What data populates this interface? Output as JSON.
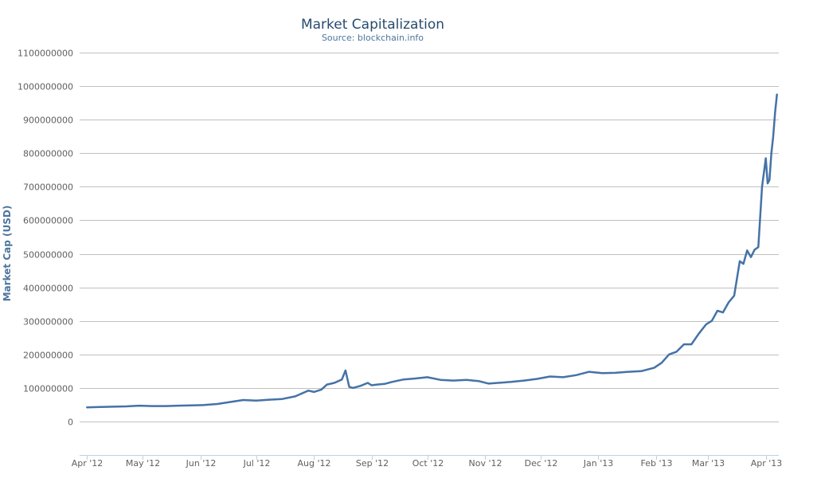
{
  "chart_data": {
    "type": "line",
    "title": "Market Capitalization",
    "subtitle": "Source: blockchain.info",
    "xlabel": "",
    "ylabel": "Market Cap (USD)",
    "ylim": [
      -100000000,
      1100000000
    ],
    "y_ticks": [
      0,
      100000000,
      200000000,
      300000000,
      400000000,
      500000000,
      600000000,
      700000000,
      800000000,
      900000000,
      1000000000,
      1100000000
    ],
    "x_ticks": [
      {
        "date": "2012-04-01",
        "label": "Apr '12"
      },
      {
        "date": "2012-05-01",
        "label": "May '12"
      },
      {
        "date": "2012-06-01",
        "label": "Jun '12"
      },
      {
        "date": "2012-07-01",
        "label": "Jul '12"
      },
      {
        "date": "2012-08-01",
        "label": "Aug '12"
      },
      {
        "date": "2012-09-01",
        "label": "Sep '12"
      },
      {
        "date": "2012-10-01",
        "label": "Oct '12"
      },
      {
        "date": "2012-11-01",
        "label": "Nov '12"
      },
      {
        "date": "2012-12-01",
        "label": "Dec '12"
      },
      {
        "date": "2013-01-01",
        "label": "Jan '13"
      },
      {
        "date": "2013-02-01",
        "label": "Feb '13"
      },
      {
        "date": "2013-03-01",
        "label": "Mar '13"
      },
      {
        "date": "2013-04-01",
        "label": "Apr '13"
      }
    ],
    "xlim": [
      "2012-03-28",
      "2013-04-08"
    ],
    "grid": true,
    "legend": "none",
    "color": "#4572a7",
    "series": [
      {
        "x": [
          "2012-04-01",
          "2012-04-08",
          "2012-04-15",
          "2012-04-22",
          "2012-04-29",
          "2012-05-06",
          "2012-05-13",
          "2012-05-20",
          "2012-05-27",
          "2012-06-03",
          "2012-06-10",
          "2012-06-17",
          "2012-06-24",
          "2012-07-01",
          "2012-07-08",
          "2012-07-15",
          "2012-07-22",
          "2012-07-29",
          "2012-08-01",
          "2012-08-05",
          "2012-08-08",
          "2012-08-12",
          "2012-08-16",
          "2012-08-18",
          "2012-08-20",
          "2012-08-22",
          "2012-08-26",
          "2012-08-30",
          "2012-09-01",
          "2012-09-04",
          "2012-09-08",
          "2012-09-12",
          "2012-09-18",
          "2012-09-24",
          "2012-10-01",
          "2012-10-08",
          "2012-10-15",
          "2012-10-22",
          "2012-10-29",
          "2012-11-03",
          "2012-11-08",
          "2012-11-15",
          "2012-11-22",
          "2012-11-29",
          "2012-12-06",
          "2012-12-13",
          "2012-12-20",
          "2012-12-27",
          "2013-01-03",
          "2013-01-10",
          "2013-01-17",
          "2013-01-24",
          "2013-01-31",
          "2013-02-04",
          "2013-02-08",
          "2013-02-12",
          "2013-02-16",
          "2013-02-20",
          "2013-02-24",
          "2013-02-28",
          "2013-03-03",
          "2013-03-06",
          "2013-03-09",
          "2013-03-12",
          "2013-03-15",
          "2013-03-18",
          "2013-03-20",
          "2013-03-22",
          "2013-03-24",
          "2013-03-26",
          "2013-03-28",
          "2013-03-30",
          "2013-04-01",
          "2013-04-02",
          "2013-04-03",
          "2013-04-04",
          "2013-04-05",
          "2013-04-06",
          "2013-04-07"
        ],
        "y": [
          42000000,
          43000000,
          44000000,
          45000000,
          47000000,
          46000000,
          46000000,
          47000000,
          48000000,
          49000000,
          52000000,
          58000000,
          64000000,
          62000000,
          65000000,
          67000000,
          75000000,
          92000000,
          88000000,
          95000000,
          110000000,
          115000000,
          125000000,
          152000000,
          103000000,
          100000000,
          106000000,
          115000000,
          108000000,
          110000000,
          112000000,
          118000000,
          125000000,
          128000000,
          132000000,
          124000000,
          122000000,
          124000000,
          120000000,
          113000000,
          115000000,
          118000000,
          122000000,
          127000000,
          134000000,
          132000000,
          138000000,
          148000000,
          144000000,
          145000000,
          148000000,
          150000000,
          160000000,
          175000000,
          200000000,
          208000000,
          230000000,
          230000000,
          262000000,
          290000000,
          300000000,
          330000000,
          325000000,
          355000000,
          375000000,
          478000000,
          470000000,
          510000000,
          490000000,
          512000000,
          520000000,
          700000000,
          785000000,
          710000000,
          720000000,
          800000000,
          850000000,
          920000000,
          975000000
        ]
      }
    ]
  }
}
